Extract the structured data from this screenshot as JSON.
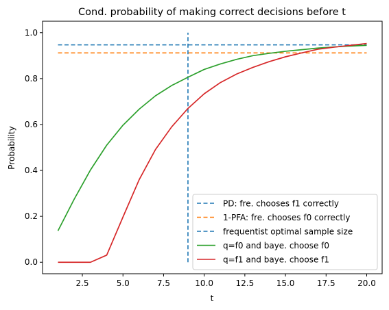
{
  "chart_data": {
    "type": "line",
    "title": "Cond. probability of making correct decisions before t",
    "xlabel": "t",
    "ylabel": "Probability",
    "xlim": [
      0.05,
      20.95
    ],
    "ylim": [
      -0.05,
      1.05
    ],
    "xticks": [
      2.5,
      5.0,
      7.5,
      10.0,
      12.5,
      15.0,
      17.5,
      20.0
    ],
    "xtick_labels": [
      "2.5",
      "5.0",
      "7.5",
      "10.0",
      "12.5",
      "15.0",
      "17.5",
      "20.0"
    ],
    "yticks": [
      0.0,
      0.2,
      0.4,
      0.6,
      0.8,
      1.0
    ],
    "ytick_labels": [
      "0.0",
      "0.2",
      "0.4",
      "0.6",
      "0.8",
      "1.0"
    ],
    "grid": false,
    "legend_position": "bottom-right",
    "hlines": [
      {
        "name": "PD: fre. chooses f1 correctly",
        "y": 0.947,
        "x_range": [
          1,
          20
        ],
        "color": "#1f77b4",
        "style": "dashed"
      },
      {
        "name": "1-PFA: fre. chooses f0 correctly",
        "y": 0.912,
        "x_range": [
          1,
          20
        ],
        "color": "#ff7f0e",
        "style": "dashed"
      }
    ],
    "vlines": [
      {
        "name": "frequentist optimal sample size",
        "x": 9,
        "y_range": [
          0.0,
          1.0
        ],
        "color": "#1f77b4",
        "style": "dashed"
      }
    ],
    "x": [
      1,
      2,
      3,
      4,
      5,
      6,
      7,
      8,
      9,
      10,
      11,
      12,
      13,
      14,
      15,
      16,
      17,
      18,
      19,
      20
    ],
    "series": [
      {
        "name": "q=f0 and baye. choose f0",
        "color": "#2ca02c",
        "values": [
          0.137,
          0.275,
          0.402,
          0.51,
          0.597,
          0.667,
          0.725,
          0.77,
          0.806,
          0.84,
          0.864,
          0.884,
          0.9,
          0.91,
          0.919,
          0.926,
          0.933,
          0.938,
          0.942,
          0.945
        ]
      },
      {
        "name": "q=f1 and baye. choose f1",
        "color": "#d62728",
        "values": [
          0.0,
          0.0,
          0.0,
          0.031,
          0.197,
          0.36,
          0.491,
          0.59,
          0.67,
          0.734,
          0.783,
          0.82,
          0.849,
          0.874,
          0.895,
          0.912,
          0.928,
          0.937,
          0.945,
          0.953
        ]
      }
    ]
  }
}
